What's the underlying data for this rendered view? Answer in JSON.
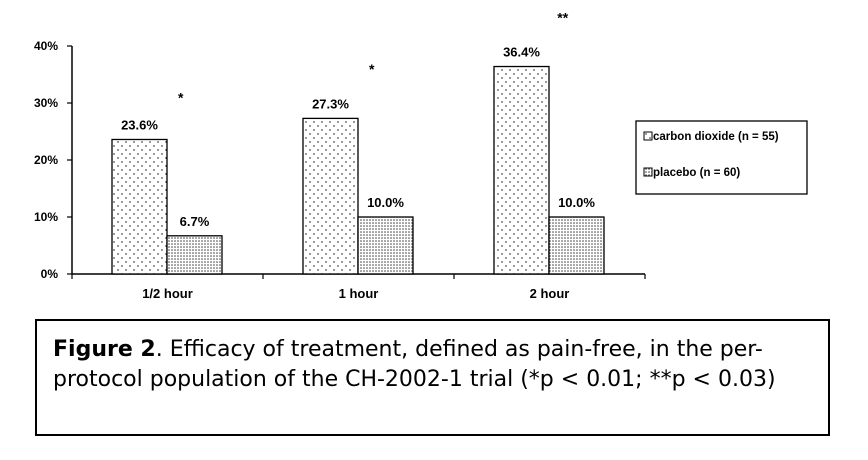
{
  "chart_data": {
    "type": "bar",
    "categories": [
      "1/2 hour",
      "1 hour",
      "2 hour"
    ],
    "series": [
      {
        "name": "carbon dioxide (n = 55)",
        "values": [
          23.6,
          27.3,
          36.4
        ],
        "pattern": "sparse-dots"
      },
      {
        "name": "placebo (n = 60)",
        "values": [
          6.7,
          10.0,
          10.0
        ],
        "pattern": "dense-dots"
      }
    ],
    "data_labels": [
      [
        "23.6%",
        "27.3%",
        "36.4%"
      ],
      [
        "6.7%",
        "10.0%",
        "10.0%"
      ]
    ],
    "significance": [
      "*",
      "*",
      "**"
    ],
    "significance_levels": [
      31,
      36,
      45
    ],
    "y_ticks": [
      "0%",
      "10%",
      "20%",
      "30%",
      "40%"
    ],
    "ylim": [
      0,
      40
    ],
    "legend_position": "right",
    "grid": false
  },
  "caption": {
    "lead": "Figure 2",
    "text": ". Efficacy of treatment, defined as pain-free, in the per-protocol population of the CH-2002-1 trial (*p < 0.01; **p < 0.03)"
  }
}
